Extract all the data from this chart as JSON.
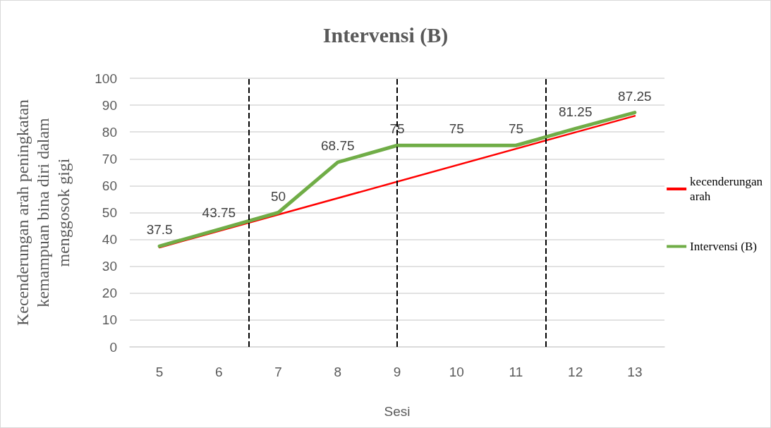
{
  "chart_data": {
    "type": "line",
    "title": "Intervensi (B)",
    "xlabel": "Sesi",
    "ylabel": "Kecenderungan arah peningkatan kemampuan bina diri dalam menggosok gigi",
    "x": [
      5,
      6,
      7,
      8,
      9,
      10,
      11,
      12,
      13
    ],
    "series": [
      {
        "name": "kecenderungan arah",
        "color": "#ff0000",
        "x": [
          5,
          13
        ],
        "values": [
          37,
          86
        ]
      },
      {
        "name": "Intervensi (B)",
        "color": "#70ad47",
        "values": [
          37.5,
          43.75,
          50,
          68.75,
          75,
          75,
          75,
          81.25,
          87.25
        ],
        "value_labels": [
          "37.5",
          "43.75",
          "50",
          "68.75",
          "75",
          "75",
          "75",
          "81.25",
          "87.25"
        ]
      }
    ],
    "xlim": [
      4.5,
      13.5
    ],
    "xticks": [
      5,
      6,
      7,
      8,
      9,
      10,
      11,
      12,
      13
    ],
    "ylim": [
      0,
      100
    ],
    "yticks": [
      0,
      10,
      20,
      30,
      40,
      50,
      60,
      70,
      80,
      90,
      100
    ],
    "ref_lines": [
      {
        "axis": "x",
        "value": 6.5,
        "color": "#000000",
        "line_style": "dashed"
      },
      {
        "axis": "x",
        "value": 9,
        "color": "#000000",
        "line_style": "dashed"
      },
      {
        "axis": "x",
        "value": 11.5,
        "color": "#000000",
        "line_style": "dashed"
      }
    ],
    "grid": "y",
    "legend": "right",
    "marker": "none"
  }
}
